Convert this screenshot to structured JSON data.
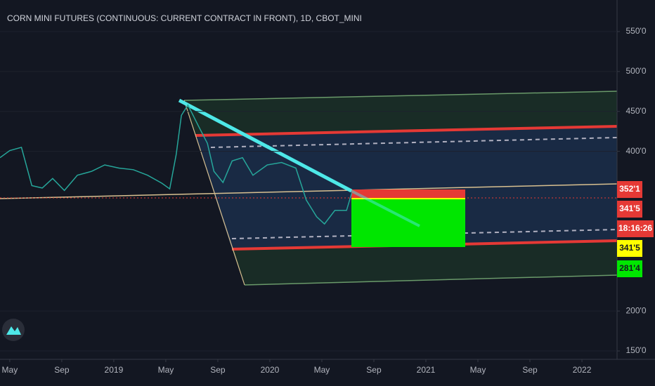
{
  "chart_data": {
    "type": "line",
    "title": "CORN MINI FUTURES (CONTINUOUS: CURRENT CONTRACT IN FRONT), 1D, CBOT_MINI",
    "x": [
      -0.75,
      0,
      0.9,
      1.7,
      2.5,
      3.3,
      4.2,
      5.2,
      6.3,
      7.3,
      8.4,
      9.5,
      10.6,
      11.7,
      12.3,
      12.8,
      13.2,
      13.7,
      14.5,
      15.2,
      15.7,
      16.4,
      17.1,
      17.9,
      18.7,
      19.8,
      20.9,
      22,
      22.8,
      23.6,
      24.2,
      25,
      25.9,
      26.3
    ],
    "series": [
      {
        "name": "Price",
        "color": "#26a69a",
        "values": [
          392,
          401,
          405,
          357,
          354,
          366,
          351,
          370,
          375,
          383,
          379,
          377,
          370,
          360,
          353,
          396,
          445,
          458,
          432,
          410,
          375,
          361,
          388,
          392,
          370,
          383,
          386,
          379,
          339,
          318,
          309,
          326,
          326,
          348
        ]
      }
    ],
    "xlim": [
      -0.75,
      46.7
    ],
    "xticks": [
      {
        "value": 0,
        "label": "May"
      },
      {
        "value": 4,
        "label": "Sep"
      },
      {
        "value": 8,
        "label": "2019"
      },
      {
        "value": 12,
        "label": "May"
      },
      {
        "value": 16,
        "label": "Sep"
      },
      {
        "value": 20,
        "label": "2020"
      },
      {
        "value": 24,
        "label": "May"
      },
      {
        "value": 28,
        "label": "Sep"
      },
      {
        "value": 32,
        "label": "2021"
      },
      {
        "value": 36,
        "label": "May"
      },
      {
        "value": 40,
        "label": "Sep"
      },
      {
        "value": 44,
        "label": "2022"
      }
    ],
    "ylim": [
      139.5,
      589.5
    ],
    "yticks": [
      {
        "value": 150,
        "label": "150'0"
      },
      {
        "value": 200,
        "label": "200'0"
      },
      {
        "value": 400,
        "label": "400'0"
      },
      {
        "value": 450,
        "label": "450'0"
      },
      {
        "value": 500,
        "label": "500'0"
      },
      {
        "value": 550,
        "label": "550'0"
      }
    ],
    "price_labels": [
      {
        "value": 352.125,
        "label": "352'1",
        "color": "#e53935"
      },
      {
        "value": 341.625,
        "label": "341'5",
        "color": "#e53935"
      },
      {
        "value": 341.625,
        "label": "341'5",
        "color": "#ffff00"
      },
      {
        "value": 281.5,
        "label": "281'4",
        "color": "#00e600"
      }
    ],
    "countdown": "18:16:26"
  }
}
